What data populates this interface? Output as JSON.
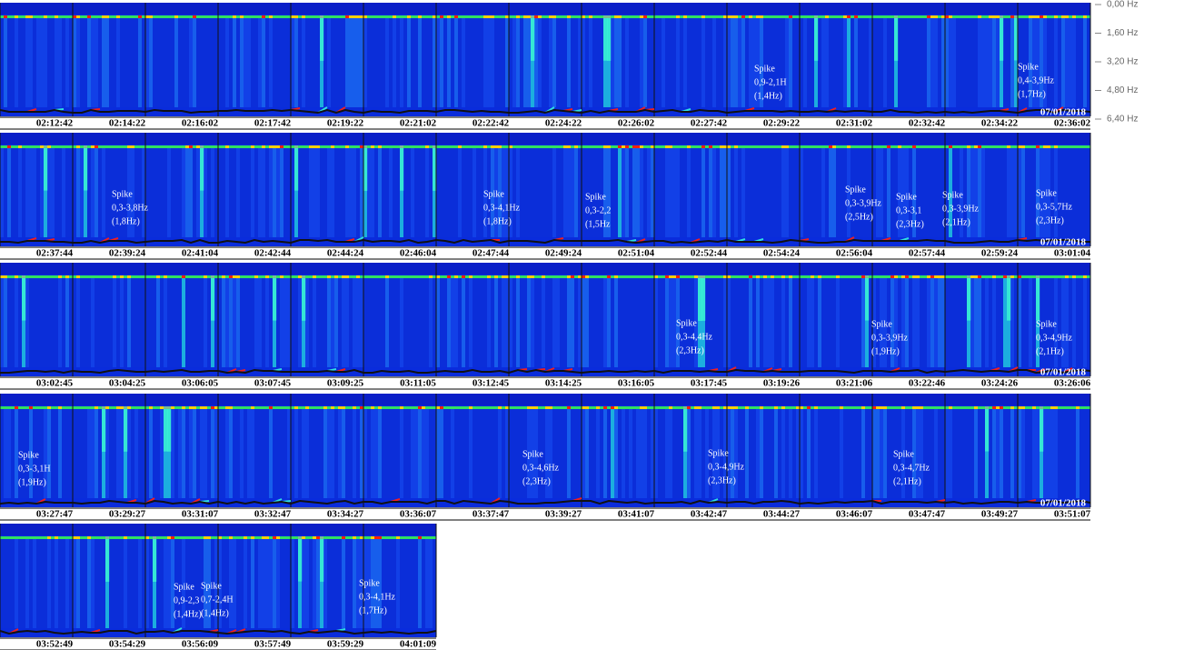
{
  "chart_data": {
    "type": "spectrogram",
    "yticks": [
      {
        "value": 0,
        "label": "0,00 Hz"
      },
      {
        "value": 1.6,
        "label": "1,60 Hz"
      },
      {
        "value": 3.2,
        "label": "3,20 Hz"
      },
      {
        "value": 4.8,
        "label": "4,80 Hz"
      },
      {
        "value": 6.4,
        "label": "6,40 Hz"
      }
    ],
    "ylim": [
      0,
      6.4
    ],
    "rows": [
      {
        "times": [
          "02:12:42",
          "02:14:22",
          "02:16:02",
          "02:17:42",
          "02:19:22",
          "02:21:02",
          "02:22:42",
          "02:24:22",
          "02:26:02",
          "02:27:42",
          "02:29:22",
          "02:31:02",
          "02:32:42",
          "02:34:22",
          "02:36:02"
        ],
        "date": "07/01/2018",
        "annotations": [
          [
            "Spike",
            "0,9-2,1H",
            "(1,4Hz)"
          ],
          [
            "Spike",
            "0,4-3,9Hz",
            "(1,7Hz)"
          ]
        ]
      },
      {
        "times": [
          "02:37:44",
          "02:39:24",
          "02:41:04",
          "02:42:44",
          "02:44:24",
          "02:46:04",
          "02:47:44",
          "02:49:24",
          "02:51:04",
          "02:52:44",
          "02:54:24",
          "02:56:04",
          "02:57:44",
          "02:59:24",
          "03:01:04"
        ],
        "date": "07/01/2018",
        "annotations": [
          [
            "Spike",
            "0,3-3,8Hz",
            "(1,8Hz)"
          ],
          [
            "Spike",
            "0,3-4,1Hz",
            "(1,8Hz)"
          ],
          [
            "Spike",
            "0,3-2,2",
            "(1,5Hz"
          ],
          [
            "Spike",
            "0,3-3,9Hz",
            "(2,5Hz)"
          ],
          [
            "Spike",
            "0,3-3,1",
            "(2,3Hz)"
          ],
          [
            "Spike",
            "0,3-3,9Hz",
            "(2,1Hz)"
          ],
          [
            "Spike",
            "0,3-5,7Hz",
            "(2,3Hz)"
          ]
        ]
      },
      {
        "times": [
          "03:02:45",
          "03:04:25",
          "03:06:05",
          "03:07:45",
          "03:09:25",
          "03:11:05",
          "03:12:45",
          "03:14:25",
          "03:16:05",
          "03:17:45",
          "03:19:26",
          "03:21:06",
          "03:22:46",
          "03:24:26",
          "03:26:06"
        ],
        "date": "07/01/2018",
        "annotations": [
          [
            "Spike",
            "0,3-4,4Hz",
            "(2,3Hz)"
          ],
          [
            "Spike",
            "0,3-3,9Hz",
            "(1,9Hz)"
          ],
          [
            "Spike",
            "0,3-4,9Hz",
            "(2,1Hz)"
          ]
        ]
      },
      {
        "times": [
          "03:27:47",
          "03:29:27",
          "03:31:07",
          "03:32:47",
          "03:34:27",
          "03:36:07",
          "03:37:47",
          "03:39:27",
          "03:41:07",
          "03:42:47",
          "03:44:27",
          "03:46:07",
          "03:47:47",
          "03:49:27",
          "03:51:07"
        ],
        "date": "07/01/2018",
        "annotations": [
          [
            "Spike",
            "0,3-3,1H",
            "(1,9Hz)"
          ],
          [
            "Spike",
            "0,3-4,6Hz",
            "(2,3Hz)"
          ],
          [
            "Spike",
            "0,3-4,9Hz",
            "(2,3Hz)"
          ],
          [
            "Spike",
            "0,3-4,7Hz",
            "(2,1Hz)"
          ]
        ]
      },
      {
        "times": [
          "03:52:49",
          "03:54:29",
          "03:56:09",
          "03:57:49",
          "03:59:29",
          "04:01:09"
        ],
        "annotations": [
          [
            "Spike",
            "0,9-2,3",
            "(1,4Hz)"
          ],
          [
            "Spike",
            "0,7-2,4H",
            "(1,4Hz)"
          ],
          [
            "Spike",
            "0,3-4,1Hz",
            "(1,7Hz)"
          ]
        ]
      }
    ]
  }
}
